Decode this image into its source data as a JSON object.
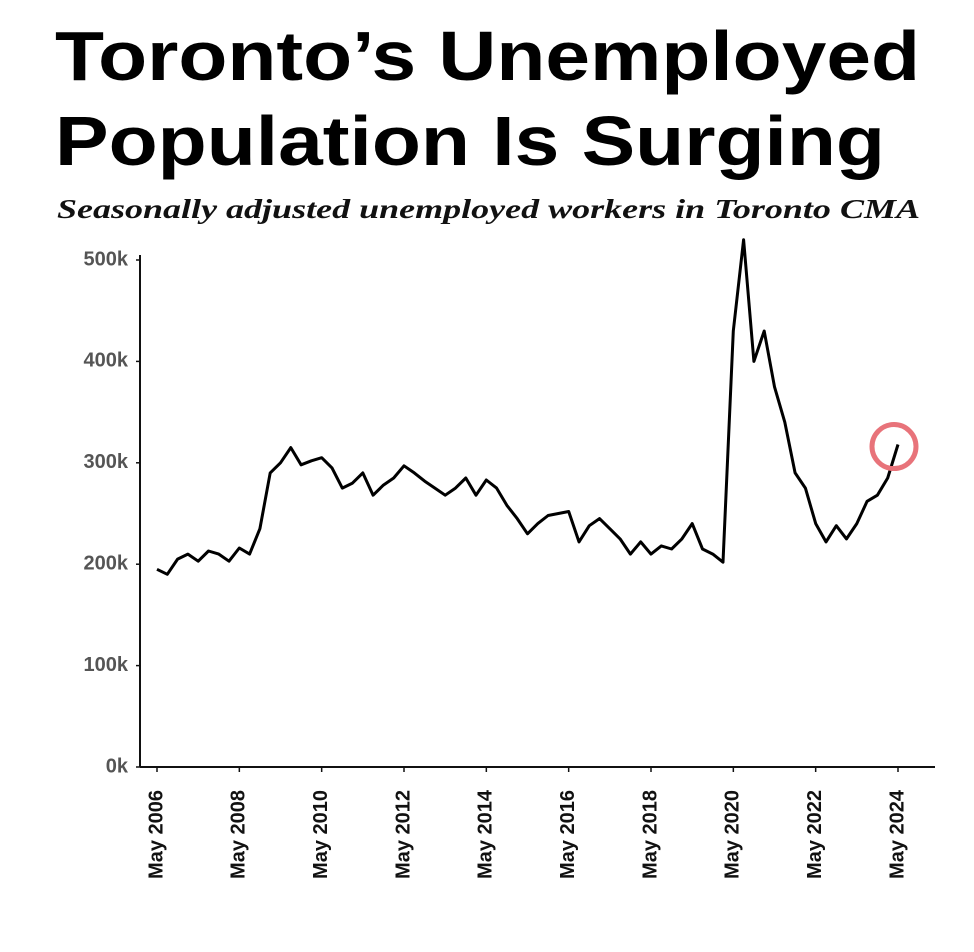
{
  "chart_data": {
    "type": "line",
    "title_lines": [
      "Toronto’s Unemployed",
      "Population Is Surging"
    ],
    "subtitle": "Seasonally adjusted unemployed workers in Toronto CMA",
    "x": [
      "2006-05",
      "2006-08",
      "2006-11",
      "2007-02",
      "2007-05",
      "2007-08",
      "2007-11",
      "2008-02",
      "2008-05",
      "2008-08",
      "2008-11",
      "2009-02",
      "2009-05",
      "2009-08",
      "2009-11",
      "2010-02",
      "2010-05",
      "2010-08",
      "2010-11",
      "2011-02",
      "2011-05",
      "2011-08",
      "2011-11",
      "2012-02",
      "2012-05",
      "2012-08",
      "2012-11",
      "2013-02",
      "2013-05",
      "2013-08",
      "2013-11",
      "2014-02",
      "2014-05",
      "2014-08",
      "2014-11",
      "2015-02",
      "2015-05",
      "2015-08",
      "2015-11",
      "2016-02",
      "2016-05",
      "2016-08",
      "2016-11",
      "2017-02",
      "2017-05",
      "2017-08",
      "2017-11",
      "2018-02",
      "2018-05",
      "2018-08",
      "2018-11",
      "2019-02",
      "2019-05",
      "2019-08",
      "2019-11",
      "2020-02",
      "2020-05",
      "2020-08",
      "2020-11",
      "2021-02",
      "2021-05",
      "2021-08",
      "2021-11",
      "2022-02",
      "2022-05",
      "2022-08",
      "2022-11",
      "2023-02",
      "2023-05",
      "2023-08",
      "2023-11",
      "2024-02",
      "2024-05"
    ],
    "series": [
      {
        "name": "Unemployed workers",
        "color": "#000000",
        "values": [
          195000,
          190000,
          205000,
          210000,
          203000,
          213000,
          210000,
          203000,
          216000,
          210000,
          235000,
          290000,
          300000,
          315000,
          298000,
          302000,
          305000,
          295000,
          275000,
          280000,
          290000,
          268000,
          278000,
          285000,
          297000,
          290000,
          282000,
          275000,
          268000,
          275000,
          285000,
          268000,
          283000,
          275000,
          258000,
          245000,
          230000,
          240000,
          248000,
          250000,
          252000,
          222000,
          238000,
          245000,
          235000,
          225000,
          210000,
          222000,
          210000,
          218000,
          215000,
          225000,
          240000,
          215000,
          210000,
          202000,
          430000,
          520000,
          400000,
          430000,
          375000,
          340000,
          290000,
          275000,
          240000,
          222000,
          238000,
          225000,
          240000,
          262000,
          268000,
          285000,
          318000
        ]
      }
    ],
    "ylim": [
      0,
      500000
    ],
    "yticks": [
      {
        "value": 0,
        "label": "0k"
      },
      {
        "value": 100000,
        "label": "100k"
      },
      {
        "value": 200000,
        "label": "200k"
      },
      {
        "value": 300000,
        "label": "300k"
      },
      {
        "value": 400000,
        "label": "400k"
      },
      {
        "value": 500000,
        "label": "500k"
      }
    ],
    "xticks": [
      {
        "value": "2006-05",
        "label": "May 2006"
      },
      {
        "value": "2008-05",
        "label": "May 2008"
      },
      {
        "value": "2010-05",
        "label": "May 2010"
      },
      {
        "value": "2012-05",
        "label": "May 2012"
      },
      {
        "value": "2014-05",
        "label": "May 2014"
      },
      {
        "value": "2016-05",
        "label": "May 2016"
      },
      {
        "value": "2018-05",
        "label": "May 2018"
      },
      {
        "value": "2020-05",
        "label": "May 2020"
      },
      {
        "value": "2022-05",
        "label": "May 2022"
      },
      {
        "value": "2024-05",
        "label": "May 2024"
      }
    ],
    "highlight_color": "#e8737a",
    "grid": false
  }
}
